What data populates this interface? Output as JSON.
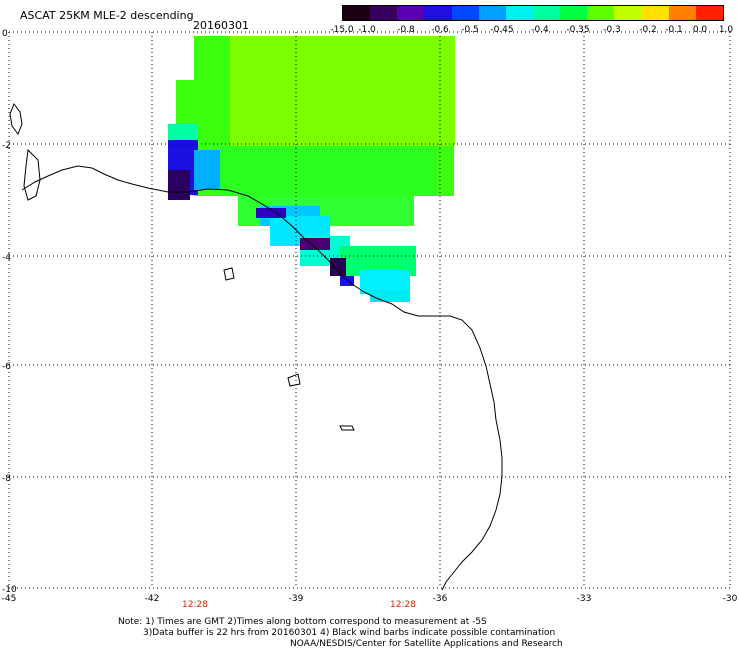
{
  "header": {
    "title": "ASCAT 25KM MLE-2 descending",
    "date": "20160301"
  },
  "colorbar": {
    "labels": [
      "-15.0",
      "-1.0",
      "-0.8",
      "-0.6",
      "-0.5",
      "-0.45",
      "-0.4",
      "-0.35",
      "-0.3",
      "-0.2",
      "-0.1",
      "0.0",
      "1.0"
    ],
    "colors": [
      "#1a0010",
      "#3a0060",
      "#5a00b0",
      "#2010e0",
      "#0048ff",
      "#00a0ff",
      "#00f0f0",
      "#00ffa0",
      "#00ff40",
      "#60ff00",
      "#c0ff00",
      "#ffe000",
      "#ff8000",
      "#ff2000"
    ]
  },
  "map": {
    "lat_labels": [
      "0",
      "-2",
      "-4",
      "-6",
      "-8",
      "-10"
    ],
    "lon_labels": [
      "-45",
      "-42",
      "-39",
      "-36",
      "-33",
      "-30"
    ]
  },
  "times": [
    {
      "label": "12:28"
    },
    {
      "label": "12:28"
    }
  ],
  "notes": {
    "line1": "Note: 1) Times are GMT 2)Times along bottom correspond to measurement at -5S",
    "line2": "3)Data buffer is 22 hrs from 20160301 4) Black wind barbs indicate possible contamination",
    "line3": "NOAA/NESDIS/Center for Satellite Applications and Research"
  }
}
